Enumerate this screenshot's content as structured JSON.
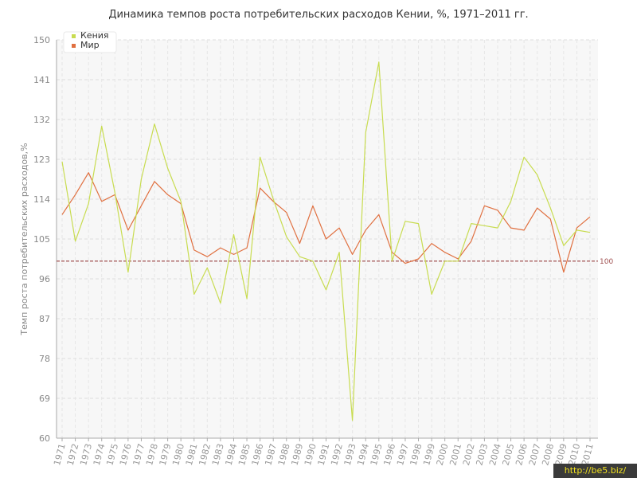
{
  "chart_data": {
    "type": "line",
    "title": "Динамика темпов роста потребительских расходов Кении, %, 1971–2011 гг.",
    "ylabel": "Темп роста потребительских расходов,%",
    "ylim": [
      60,
      150
    ],
    "yticks": [
      60,
      69,
      78,
      87,
      96,
      105,
      114,
      123,
      132,
      141,
      150
    ],
    "categories": [
      "1971",
      "1972",
      "1973",
      "1974",
      "1975",
      "1976",
      "1977",
      "1978",
      "1979",
      "1980",
      "1981",
      "1982",
      "1983",
      "1984",
      "1985",
      "1986",
      "1987",
      "1988",
      "1989",
      "1990",
      "1991",
      "1992",
      "1993",
      "1994",
      "1995",
      "1996",
      "1997",
      "1998",
      "1999",
      "2000",
      "2001",
      "2002",
      "2003",
      "2004",
      "2005",
      "2006",
      "2007",
      "2008",
      "2009",
      "2010",
      "2011"
    ],
    "series": [
      {
        "name": "Кения",
        "color": "#c8dc50",
        "values": [
          122.5,
          104.5,
          113,
          130.5,
          115.5,
          97.5,
          118.5,
          131,
          121,
          113.5,
          92.5,
          98.5,
          90.5,
          106,
          91.5,
          123.5,
          114,
          105.5,
          101,
          100,
          93.5,
          102,
          64,
          129,
          145,
          100,
          109,
          108.5,
          92.5,
          100,
          100,
          108.5,
          108,
          107.5,
          113.5,
          123.5,
          119.5,
          112,
          103.5,
          107,
          106.5
        ]
      },
      {
        "name": "Мир",
        "color": "#e07040",
        "values": [
          110.5,
          115,
          120,
          113.5,
          115,
          107,
          112.5,
          118,
          115,
          113,
          102.5,
          101,
          103,
          101.5,
          103,
          116.5,
          113.5,
          111,
          104,
          112.5,
          105,
          107.5,
          101.5,
          107,
          110.5,
          102,
          99.5,
          100.5,
          104,
          102,
          100.5,
          104.5,
          112.5,
          111.5,
          107.5,
          107,
          112,
          109.5,
          97.5,
          107.5,
          110
        ]
      }
    ],
    "reference_line": {
      "value": 100,
      "label": "100",
      "color": "#a05050"
    },
    "grid": true,
    "legend": "top-left"
  },
  "watermark": "http://be5.biz/"
}
